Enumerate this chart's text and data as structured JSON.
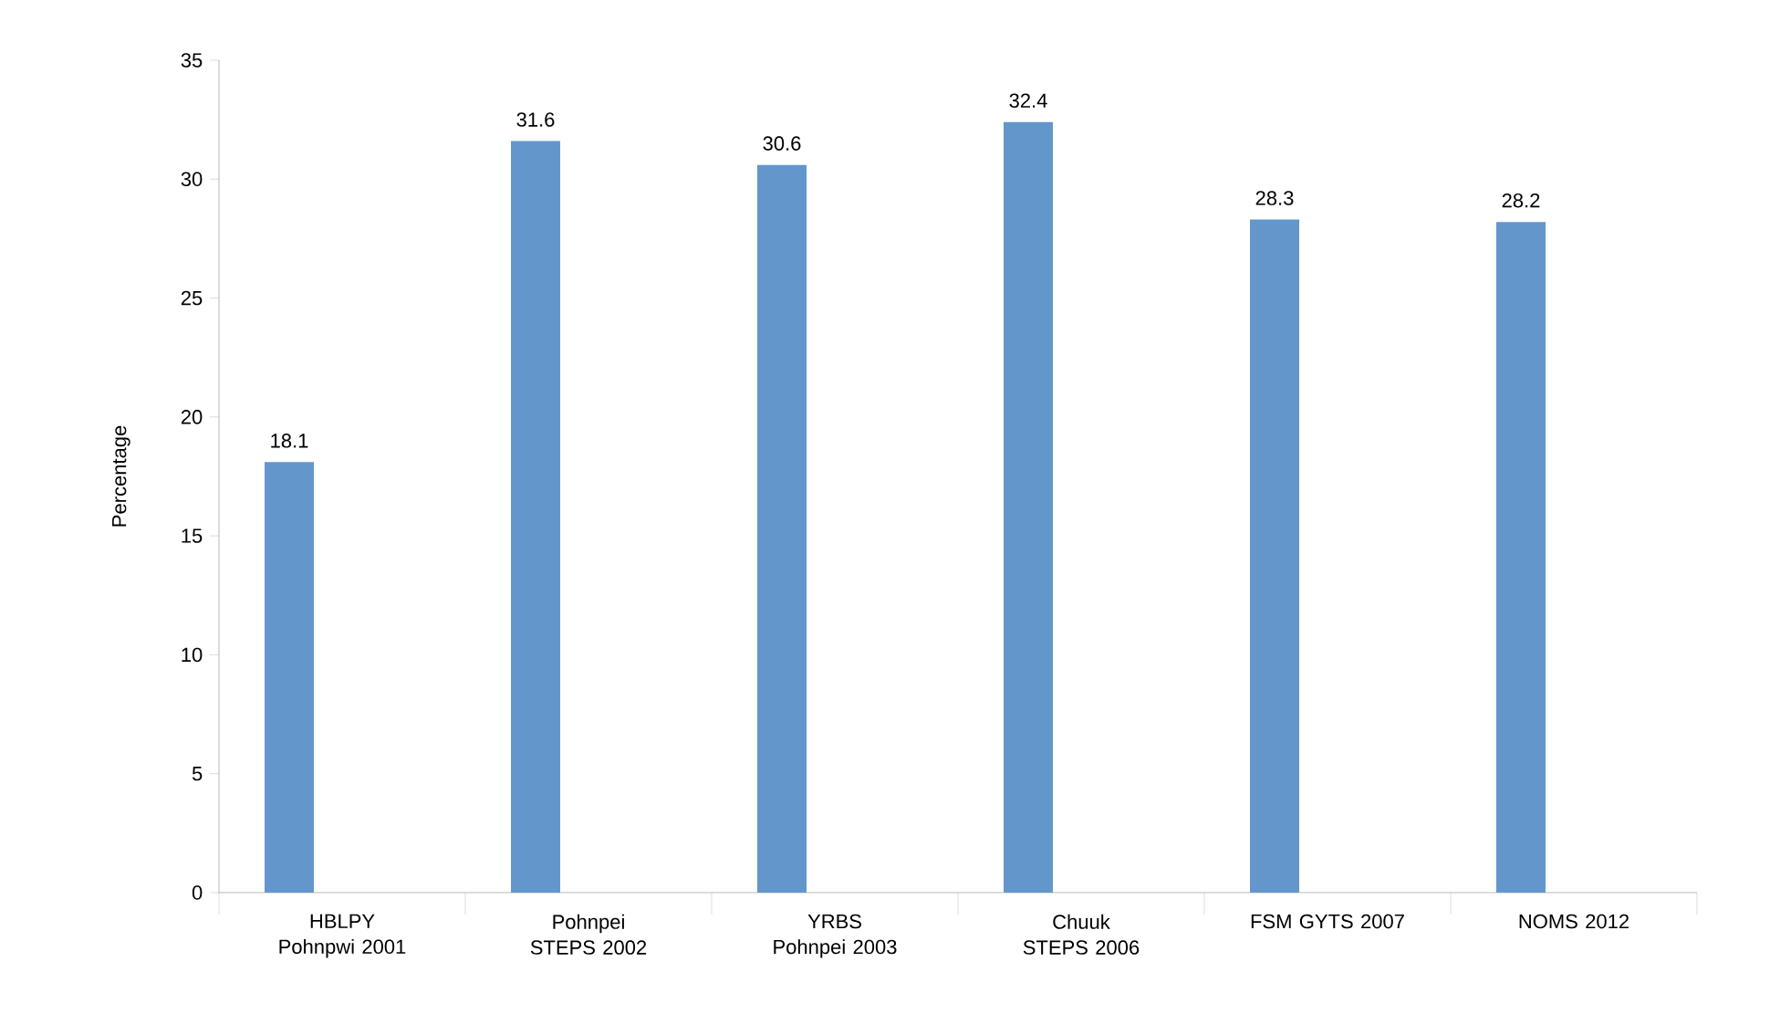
{
  "chart_data": {
    "type": "bar",
    "ylabel": "Percentage",
    "categories": [
      "HBLPY Pohnpwi 2001",
      "Pohnpei STEPS 2002",
      "YRBS Pohnpei 2003",
      "Chuuk STEPS 2006",
      "FSM GYTS 2007",
      "NOMS 2012"
    ],
    "values": [
      18.1,
      31.6,
      30.6,
      32.4,
      28.3,
      28.2
    ],
    "color": "#6397cc",
    "ylim": [
      0,
      35
    ],
    "yticks": [
      0,
      5,
      10,
      15,
      20,
      25,
      30,
      35
    ],
    "data_labels": true
  }
}
